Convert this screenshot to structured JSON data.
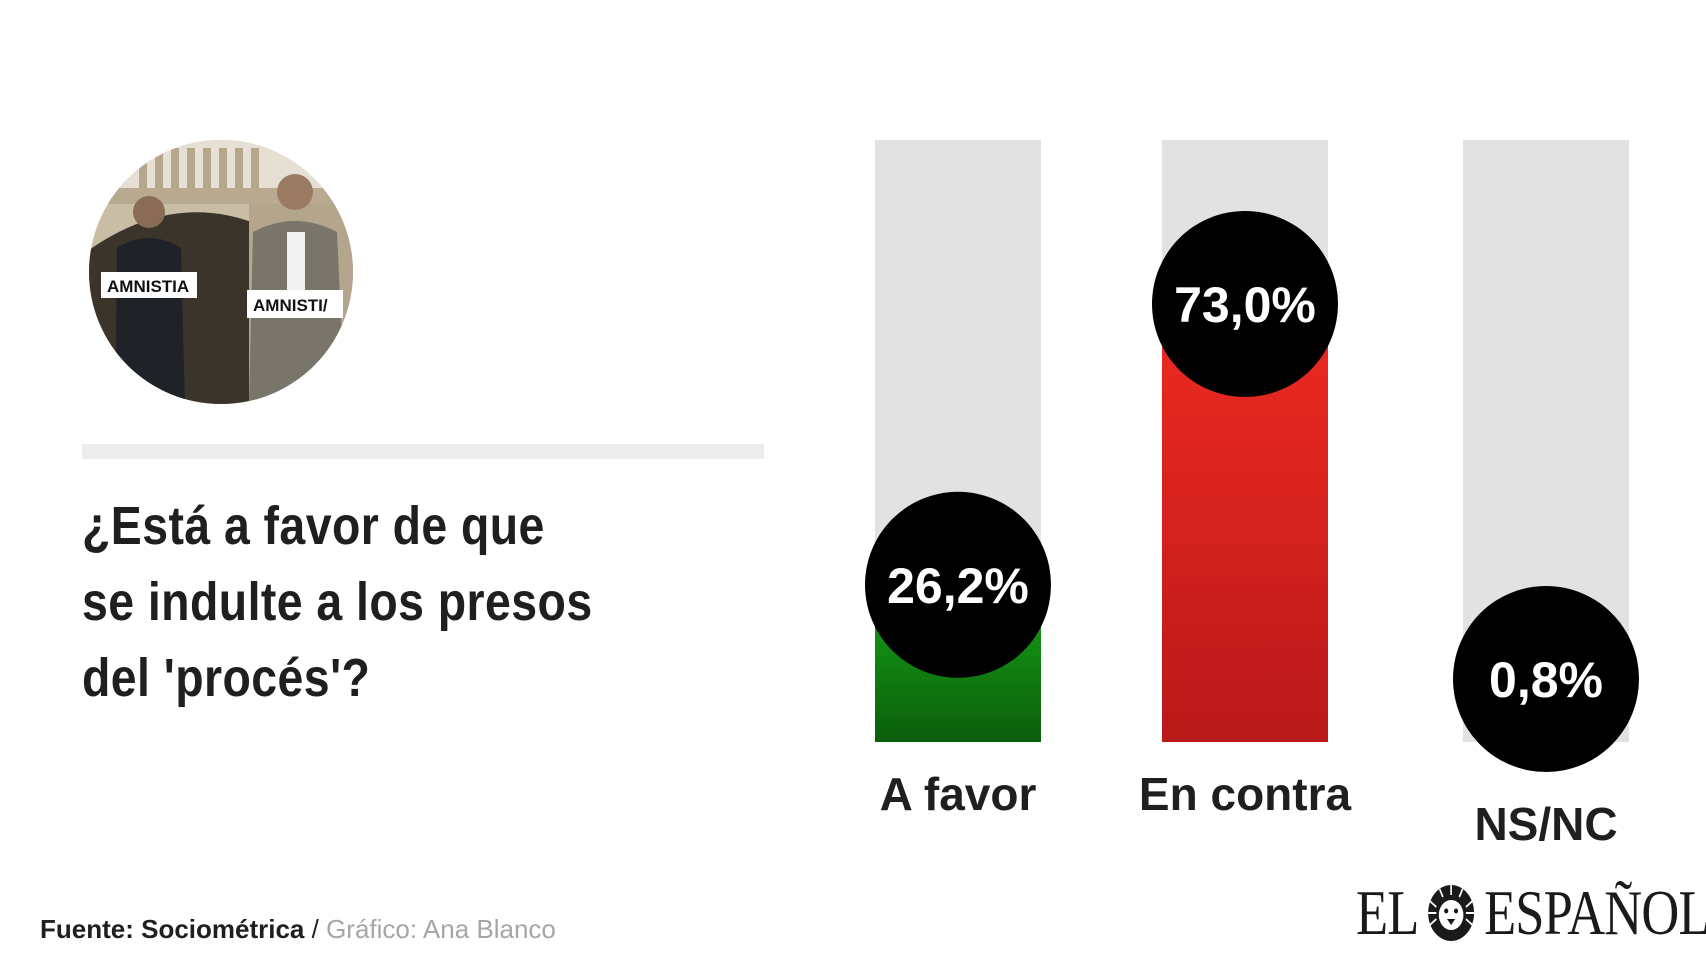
{
  "question": {
    "line1": "¿Está a favor de que",
    "line2": "se indulte a los presos",
    "line3": "del 'procés'?"
  },
  "photo": {
    "sign_left": "AMNISTIA",
    "sign_right": "AMNISTI/"
  },
  "chart_data": {
    "type": "bar",
    "categories": [
      "A favor",
      "En contra",
      "NS/NC"
    ],
    "values": [
      26.2,
      73.0,
      0.8
    ],
    "value_labels": [
      "26,2%",
      "73,0%",
      "0,8%"
    ],
    "ylim": [
      0,
      100
    ],
    "title": "",
    "xlabel": "",
    "ylabel": "",
    "grid": false,
    "colors": {
      "a_favor_top": "#17a317",
      "a_favor_bottom": "#0b5e0b",
      "en_contra_top": "#ef2a22",
      "en_contra_bottom": "#b9191a",
      "track": "#e2e2e2",
      "bubble": "#000000",
      "bubble_text": "#ffffff"
    }
  },
  "footer": {
    "source_label": "Fuente: Sociométrica",
    "separator": " / ",
    "credit": "Gráfico: Ana Blanco"
  },
  "logo": {
    "left": "EL",
    "right": "ESPAÑOL"
  }
}
